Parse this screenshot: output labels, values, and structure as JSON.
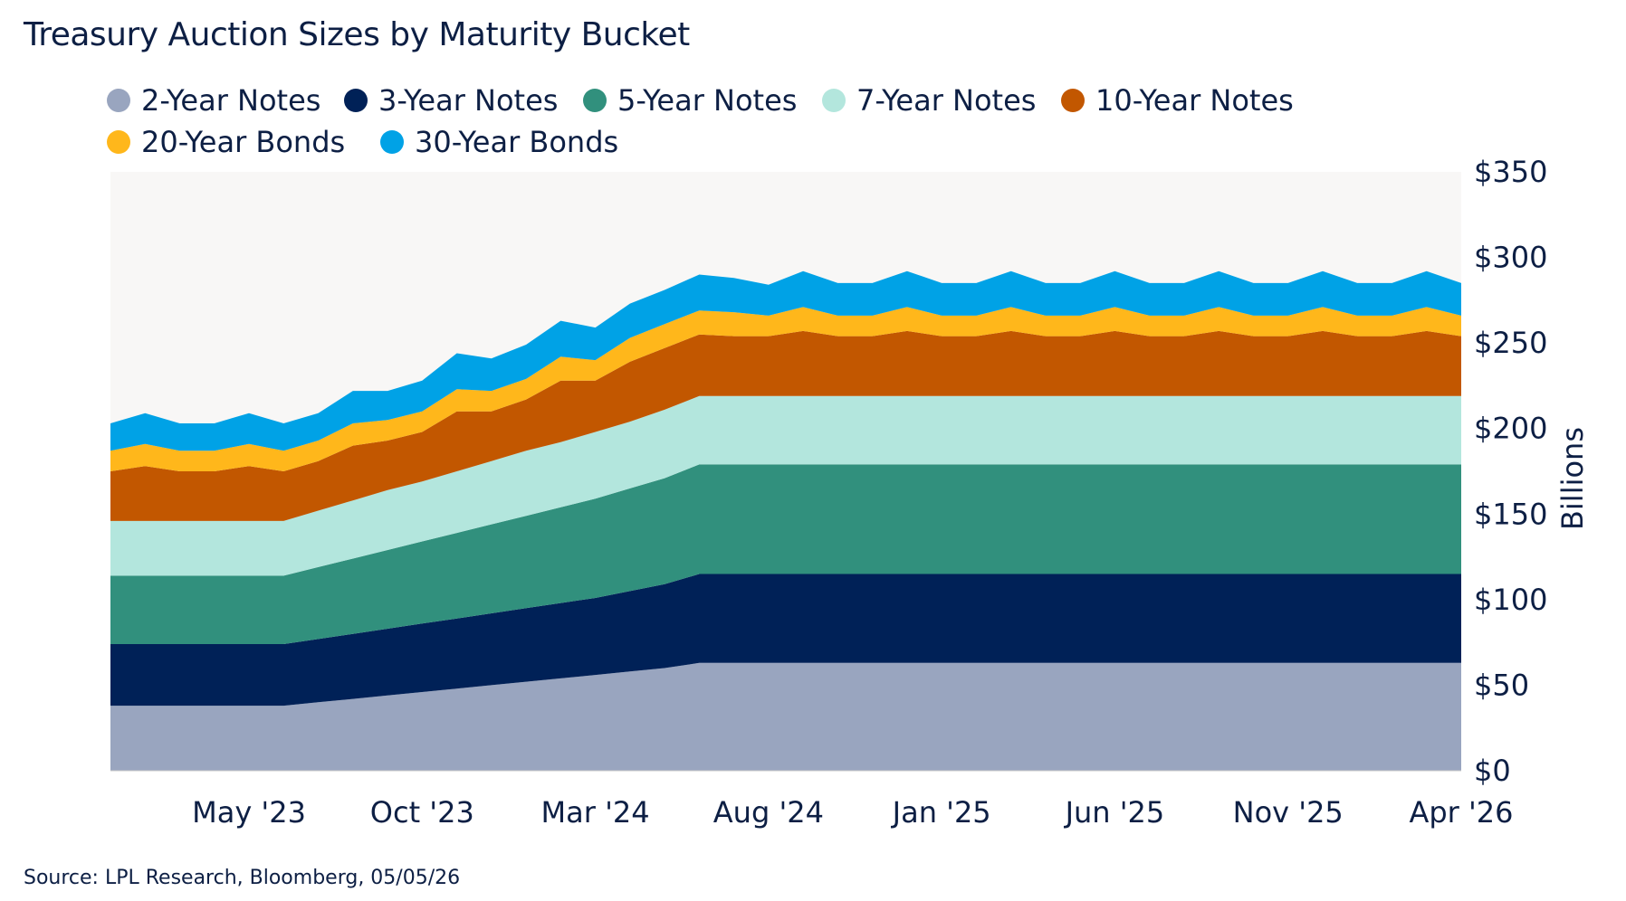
{
  "title": "Treasury Auction Sizes by Maturity Bucket",
  "source": "Source: LPL Research, Bloomberg, 05/05/26",
  "chart_data": {
    "type": "area",
    "stacked": true,
    "title": "Treasury Auction Sizes by Maturity Bucket",
    "ylabel": "Billions",
    "ylim": [
      0,
      350
    ],
    "yticks": [
      0,
      50,
      100,
      150,
      200,
      250,
      300,
      350
    ],
    "ytick_labels": [
      "$0",
      "$50",
      "$100",
      "$150",
      "$200",
      "$250",
      "$300",
      "$350"
    ],
    "y_axis_side": "right",
    "legend_position": "top",
    "plot_background": "#f8f7f6",
    "x": [
      "Jan '23",
      "Feb '23",
      "Mar '23",
      "Apr '23",
      "May '23",
      "Jun '23",
      "Jul '23",
      "Aug '23",
      "Sep '23",
      "Oct '23",
      "Nov '23",
      "Dec '23",
      "Jan '24",
      "Feb '24",
      "Mar '24",
      "Apr '24",
      "May '24",
      "Jun '24",
      "Jul '24",
      "Aug '24",
      "Sep '24",
      "Oct '24",
      "Nov '24",
      "Dec '24",
      "Jan '25",
      "Feb '25",
      "Mar '25",
      "Apr '25",
      "May '25",
      "Jun '25",
      "Jul '25",
      "Aug '25",
      "Sep '25",
      "Oct '25",
      "Nov '25",
      "Dec '25",
      "Jan '26",
      "Feb '26",
      "Mar '26",
      "Apr '26"
    ],
    "xtick_labels": [
      "May '23",
      "Oct '23",
      "Mar '24",
      "Aug '24",
      "Jan '25",
      "Jun '25",
      "Nov '25",
      "Apr '26"
    ],
    "series": [
      {
        "name": "2-Year Notes",
        "color": "#99a5bf",
        "values": [
          38,
          38,
          38,
          38,
          38,
          38,
          40,
          42,
          44,
          46,
          48,
          50,
          52,
          54,
          56,
          58,
          60,
          63,
          63,
          63,
          63,
          63,
          63,
          63,
          63,
          63,
          63,
          63,
          63,
          63,
          63,
          63,
          63,
          63,
          63,
          63,
          63,
          63,
          63,
          63
        ]
      },
      {
        "name": "3-Year Notes",
        "color": "#002157",
        "values": [
          36,
          36,
          36,
          36,
          36,
          36,
          37,
          38,
          39,
          40,
          41,
          42,
          43,
          44,
          45,
          47,
          49,
          52,
          52,
          52,
          52,
          52,
          52,
          52,
          52,
          52,
          52,
          52,
          52,
          52,
          52,
          52,
          52,
          52,
          52,
          52,
          52,
          52,
          52,
          52
        ]
      },
      {
        "name": "5-Year Notes",
        "color": "#31907d",
        "values": [
          40,
          40,
          40,
          40,
          40,
          40,
          42,
          44,
          46,
          48,
          50,
          52,
          54,
          56,
          58,
          60,
          62,
          64,
          64,
          64,
          64,
          64,
          64,
          64,
          64,
          64,
          64,
          64,
          64,
          64,
          64,
          64,
          64,
          64,
          64,
          64,
          64,
          64,
          64,
          64
        ]
      },
      {
        "name": "7-Year Notes",
        "color": "#b3e6dd",
        "values": [
          32,
          32,
          32,
          32,
          32,
          32,
          33,
          34,
          35,
          35,
          36,
          37,
          38,
          38,
          39,
          39,
          40,
          40,
          40,
          40,
          40,
          40,
          40,
          40,
          40,
          40,
          40,
          40,
          40,
          40,
          40,
          40,
          40,
          40,
          40,
          40,
          40,
          40,
          40,
          40
        ]
      },
      {
        "name": "10-Year Notes",
        "color": "#c25700",
        "values": [
          29,
          32,
          29,
          29,
          32,
          29,
          29,
          32,
          29,
          29,
          35,
          29,
          30,
          36,
          30,
          35,
          36,
          36,
          35,
          35,
          38,
          35,
          35,
          38,
          35,
          35,
          38,
          35,
          35,
          38,
          35,
          35,
          38,
          35,
          35,
          38,
          35,
          35,
          38,
          35
        ]
      },
      {
        "name": "20-Year Bonds",
        "color": "#ffb71b",
        "values": [
          12,
          13,
          12,
          12,
          13,
          12,
          12,
          13,
          12,
          12,
          13,
          12,
          12,
          14,
          12,
          14,
          14,
          14,
          14,
          12,
          14,
          12,
          12,
          14,
          12,
          12,
          14,
          12,
          12,
          14,
          12,
          12,
          14,
          12,
          12,
          14,
          12,
          12,
          14,
          12
        ]
      },
      {
        "name": "30-Year Bonds",
        "color": "#00a2e6",
        "values": [
          16,
          18,
          16,
          16,
          18,
          16,
          16,
          19,
          17,
          18,
          21,
          19,
          20,
          21,
          19,
          20,
          20,
          21,
          20,
          18,
          21,
          19,
          19,
          21,
          19,
          19,
          21,
          19,
          19,
          21,
          19,
          19,
          21,
          19,
          19,
          21,
          19,
          19,
          21,
          19
        ]
      }
    ]
  }
}
